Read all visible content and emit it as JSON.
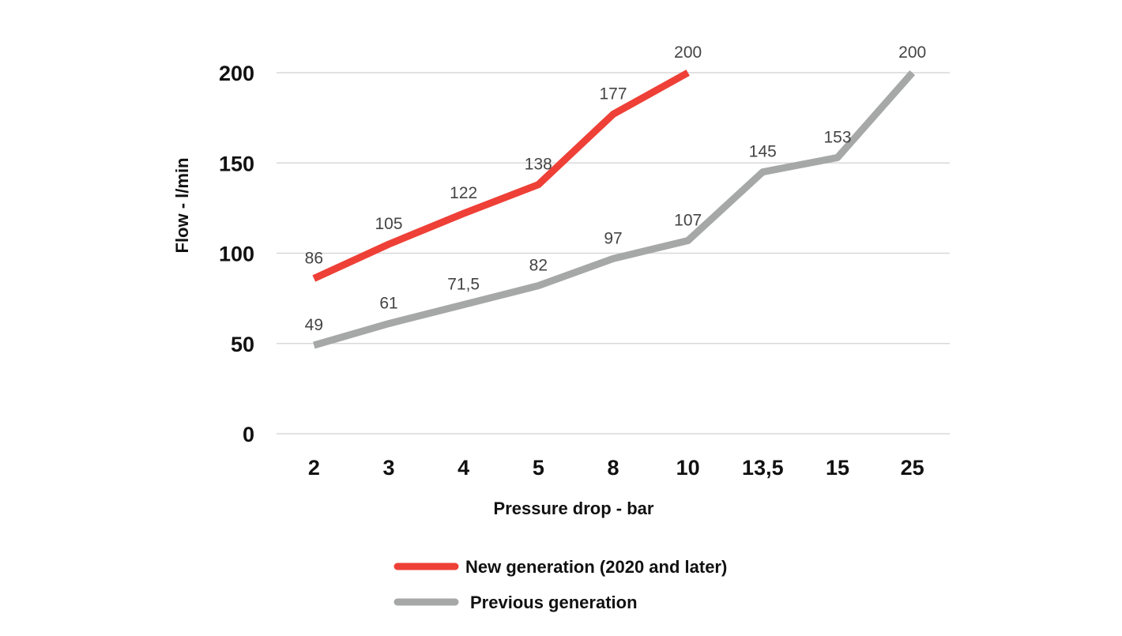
{
  "chart_data": {
    "type": "line",
    "title": "",
    "xlabel": "Pressure drop - bar",
    "ylabel": "Flow - l/min",
    "categories": [
      "2",
      "3",
      "4",
      "5",
      "8",
      "10",
      "13,5",
      "15",
      "25"
    ],
    "ylim": [
      0,
      200
    ],
    "yticks": [
      0,
      50,
      100,
      150,
      200
    ],
    "grid": true,
    "legend_position": "bottom",
    "series": [
      {
        "name": "New generation (2020 and later)",
        "color": "#ee4037",
        "values": [
          86,
          105,
          122,
          138,
          177,
          200,
          null,
          null,
          null
        ],
        "labels": [
          "86",
          "105",
          "122",
          "138",
          "177",
          "200",
          "",
          "",
          ""
        ]
      },
      {
        "name": "Previous generation",
        "color": "#a6a8a7",
        "values": [
          49,
          61,
          71.5,
          82,
          97,
          107,
          145,
          153,
          200
        ],
        "labels": [
          "49",
          "61",
          "71,5",
          "82",
          "97",
          "107",
          "145",
          "153",
          "200"
        ]
      }
    ]
  }
}
